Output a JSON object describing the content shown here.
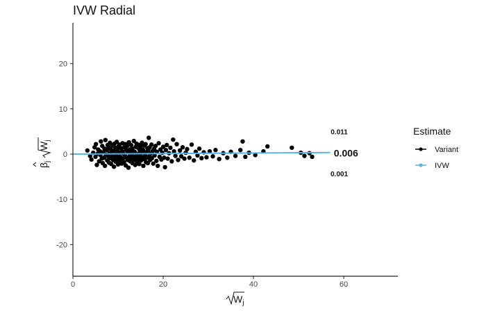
{
  "chart_data": {
    "type": "scatter",
    "title": "IVW Radial",
    "xlabel_base": "W",
    "xlabel_sub": "j",
    "ylabel_beta": "β",
    "ylabel_sub": "j",
    "ylabel_w": "W",
    "xlim": [
      0,
      72
    ],
    "ylim": [
      -27,
      29
    ],
    "xticks": [
      0,
      20,
      40,
      60
    ],
    "yticks": [
      -20,
      -10,
      0,
      10,
      20
    ],
    "grid": false,
    "legend": {
      "title": "Estimate",
      "position": "right",
      "entries": [
        {
          "label": "Variant",
          "color": "#000000"
        },
        {
          "label": "IVW",
          "color": "#56B4E9"
        }
      ]
    },
    "ivw_line": {
      "slope": 0.006,
      "x": [
        0,
        57
      ],
      "color": "#56B4E9"
    },
    "annotations": [
      {
        "text": "0.011",
        "x": 59,
        "y": 5,
        "size": "small"
      },
      {
        "text": "0.006",
        "x": 60.5,
        "y": 0.2,
        "size": "large"
      },
      {
        "text": "0.001",
        "x": 59,
        "y": -4.3,
        "size": "small"
      }
    ],
    "points": [
      [
        3.2,
        0.8
      ],
      [
        3.8,
        -0.4
      ],
      [
        4.1,
        -1.2
      ],
      [
        4.5,
        0.3
      ],
      [
        4.8,
        1.5
      ],
      [
        5.0,
        -0.6
      ],
      [
        5.1,
        2.2
      ],
      [
        5.3,
        -2.4
      ],
      [
        5.5,
        0.1
      ],
      [
        5.6,
        1.0
      ],
      [
        5.8,
        -1.6
      ],
      [
        6.0,
        0.6
      ],
      [
        6.1,
        -0.2
      ],
      [
        6.2,
        2.8
      ],
      [
        6.4,
        -1.0
      ],
      [
        6.5,
        1.8
      ],
      [
        6.6,
        -2.0
      ],
      [
        6.7,
        0.4
      ],
      [
        6.9,
        -0.8
      ],
      [
        7.0,
        1.2
      ],
      [
        7.1,
        -2.6
      ],
      [
        7.2,
        3.1
      ],
      [
        7.3,
        -0.1
      ],
      [
        7.5,
        0.9
      ],
      [
        7.6,
        -1.4
      ],
      [
        7.7,
        2.0
      ],
      [
        7.8,
        -0.5
      ],
      [
        7.9,
        1.6
      ],
      [
        8.0,
        -1.9
      ],
      [
        8.1,
        0.2
      ],
      [
        8.2,
        2.5
      ],
      [
        8.3,
        -0.9
      ],
      [
        8.4,
        1.1
      ],
      [
        8.5,
        -2.2
      ],
      [
        8.6,
        0.5
      ],
      [
        8.7,
        -0.3
      ],
      [
        8.8,
        1.9
      ],
      [
        8.9,
        -1.3
      ],
      [
        9.0,
        0.7
      ],
      [
        9.1,
        -2.8
      ],
      [
        9.2,
        2.3
      ],
      [
        9.3,
        -0.6
      ],
      [
        9.4,
        1.4
      ],
      [
        9.5,
        -1.7
      ],
      [
        9.6,
        0.0
      ],
      [
        9.7,
        2.7
      ],
      [
        9.8,
        -1.1
      ],
      [
        9.9,
        0.8
      ],
      [
        10.0,
        -2.3
      ],
      [
        10.1,
        1.7
      ],
      [
        10.2,
        -0.4
      ],
      [
        10.3,
        2.1
      ],
      [
        10.4,
        -1.5
      ],
      [
        10.5,
        0.3
      ],
      [
        10.6,
        -0.7
      ],
      [
        10.7,
        1.3
      ],
      [
        10.8,
        -2.1
      ],
      [
        10.9,
        0.6
      ],
      [
        11.0,
        2.4
      ],
      [
        11.1,
        -1.0
      ],
      [
        11.2,
        0.1
      ],
      [
        11.3,
        -1.8
      ],
      [
        11.4,
        1.5
      ],
      [
        11.5,
        -0.2
      ],
      [
        11.6,
        2.2
      ],
      [
        11.7,
        -2.5
      ],
      [
        11.8,
        0.9
      ],
      [
        11.9,
        -0.8
      ],
      [
        12.0,
        1.8
      ],
      [
        12.1,
        -1.3
      ],
      [
        12.2,
        0.4
      ],
      [
        12.3,
        -3.0
      ],
      [
        12.4,
        2.6
      ],
      [
        12.5,
        -0.5
      ],
      [
        12.6,
        1.0
      ],
      [
        12.7,
        -1.6
      ],
      [
        12.8,
        0.2
      ],
      [
        12.9,
        2.0
      ],
      [
        13.0,
        -0.9
      ],
      [
        13.1,
        1.2
      ],
      [
        13.2,
        -2.0
      ],
      [
        13.3,
        0.7
      ],
      [
        13.4,
        -0.3
      ],
      [
        13.5,
        2.9
      ],
      [
        13.6,
        -1.2
      ],
      [
        13.7,
        0.5
      ],
      [
        13.8,
        -2.4
      ],
      [
        13.9,
        1.6
      ],
      [
        14.0,
        -0.6
      ],
      [
        14.1,
        2.3
      ],
      [
        14.2,
        -1.7
      ],
      [
        14.3,
        0.0
      ],
      [
        14.4,
        1.4
      ],
      [
        14.5,
        -0.9
      ],
      [
        14.6,
        2.0
      ],
      [
        14.7,
        -2.2
      ],
      [
        14.8,
        0.8
      ],
      [
        14.9,
        -0.4
      ],
      [
        15.0,
        1.7
      ],
      [
        15.1,
        -1.4
      ],
      [
        15.2,
        0.3
      ],
      [
        15.3,
        2.5
      ],
      [
        15.4,
        -0.7
      ],
      [
        15.5,
        1.0
      ],
      [
        15.6,
        -2.6
      ],
      [
        15.7,
        0.6
      ],
      [
        15.8,
        -1.1
      ],
      [
        15.9,
        1.9
      ],
      [
        16.0,
        -0.2
      ],
      [
        16.1,
        2.2
      ],
      [
        16.2,
        -1.8
      ],
      [
        16.3,
        0.4
      ],
      [
        16.4,
        -0.8
      ],
      [
        16.5,
        1.3
      ],
      [
        16.6,
        -2.0
      ],
      [
        16.7,
        0.9
      ],
      [
        16.8,
        3.6
      ],
      [
        16.9,
        -0.5
      ],
      [
        17.0,
        1.5
      ],
      [
        17.1,
        -1.3
      ],
      [
        17.2,
        0.1
      ],
      [
        17.4,
        2.1
      ],
      [
        17.5,
        -0.9
      ],
      [
        17.7,
        0.7
      ],
      [
        17.8,
        -2.1
      ],
      [
        18.0,
        1.2
      ],
      [
        18.1,
        -0.3
      ],
      [
        18.3,
        1.8
      ],
      [
        18.5,
        -1.5
      ],
      [
        18.6,
        0.5
      ],
      [
        18.8,
        -2.6
      ],
      [
        19.0,
        2.4
      ],
      [
        19.2,
        -0.6
      ],
      [
        19.4,
        1.0
      ],
      [
        19.6,
        -1.2
      ],
      [
        19.8,
        0.3
      ],
      [
        20.0,
        1.6
      ],
      [
        20.2,
        -0.8
      ],
      [
        20.4,
        -2.9
      ],
      [
        20.6,
        0.9
      ],
      [
        20.8,
        2.0
      ],
      [
        21.0,
        -1.0
      ],
      [
        21.3,
        0.2
      ],
      [
        21.6,
        1.4
      ],
      [
        21.9,
        -1.6
      ],
      [
        22.2,
        3.2
      ],
      [
        22.4,
        0.6
      ],
      [
        22.7,
        -0.4
      ],
      [
        23.0,
        2.2
      ],
      [
        23.3,
        -1.3
      ],
      [
        23.7,
        0.8
      ],
      [
        24.0,
        -0.5
      ],
      [
        24.3,
        1.5
      ],
      [
        24.7,
        -1.0
      ],
      [
        25.0,
        0.3
      ],
      [
        25.3,
        1.1
      ],
      [
        25.8,
        -0.8
      ],
      [
        26.3,
        2.1
      ],
      [
        26.8,
        -1.4
      ],
      [
        27.2,
        0.5
      ],
      [
        27.6,
        -0.3
      ],
      [
        28.0,
        1.2
      ],
      [
        28.5,
        -0.9
      ],
      [
        29.0,
        0.4
      ],
      [
        29.6,
        -0.7
      ],
      [
        30.3,
        0.6
      ],
      [
        31.0,
        -0.5
      ],
      [
        31.6,
        0.9
      ],
      [
        32.4,
        -1.1
      ],
      [
        33.3,
        0.2
      ],
      [
        34.2,
        -0.8
      ],
      [
        35.0,
        0.5
      ],
      [
        36.0,
        -0.4
      ],
      [
        37.1,
        0.9
      ],
      [
        37.6,
        2.8
      ],
      [
        38.2,
        -0.6
      ],
      [
        39.0,
        0.3
      ],
      [
        40.4,
        -0.2
      ],
      [
        42.2,
        0.6
      ],
      [
        43.1,
        1.7
      ],
      [
        48.5,
        1.4
      ],
      [
        50.5,
        0.3
      ],
      [
        51.3,
        -0.4
      ],
      [
        52.4,
        0.2
      ],
      [
        53.0,
        -0.6
      ]
    ]
  }
}
